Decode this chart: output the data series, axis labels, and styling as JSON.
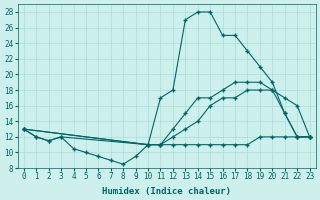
{
  "xlabel": "Humidex (Indice chaleur)",
  "xlim": [
    -0.5,
    23.5
  ],
  "ylim": [
    8,
    29
  ],
  "yticks": [
    8,
    10,
    12,
    14,
    16,
    18,
    20,
    22,
    24,
    26,
    28
  ],
  "xticks": [
    0,
    1,
    2,
    3,
    4,
    5,
    6,
    7,
    8,
    9,
    10,
    11,
    12,
    13,
    14,
    15,
    16,
    17,
    18,
    19,
    20,
    21,
    22,
    23
  ],
  "bg_color": "#cdf0ec",
  "line_color": "#006666",
  "grid_color": "#aaddda",
  "series": [
    {
      "x": [
        0,
        1,
        2,
        3,
        4,
        5,
        6,
        7,
        8,
        9,
        10,
        11,
        12,
        13,
        14,
        15,
        16,
        17,
        18,
        19,
        20,
        21,
        22,
        23
      ],
      "y": [
        13,
        12,
        11.5,
        12,
        10.5,
        10,
        9.5,
        9,
        8.5,
        9.5,
        11,
        11,
        11,
        11,
        11,
        11,
        11,
        11,
        11,
        12,
        12,
        12,
        12,
        12
      ]
    },
    {
      "x": [
        0,
        1,
        2,
        3,
        10,
        11,
        12,
        13,
        14,
        15,
        16,
        17,
        18,
        19,
        20,
        21,
        22,
        23
      ],
      "y": [
        13,
        12,
        11.5,
        12,
        11,
        17,
        18,
        27,
        28,
        28,
        25,
        25,
        23,
        21,
        19,
        15,
        12,
        12
      ]
    },
    {
      "x": [
        0,
        10,
        11,
        12,
        13,
        14,
        15,
        16,
        17,
        18,
        19,
        20,
        21,
        22,
        23
      ],
      "y": [
        13,
        11,
        11,
        13,
        15,
        17,
        17,
        18,
        19,
        19,
        19,
        18,
        15,
        12,
        12
      ]
    },
    {
      "x": [
        0,
        10,
        11,
        12,
        13,
        14,
        15,
        16,
        17,
        18,
        19,
        20,
        21,
        22,
        23
      ],
      "y": [
        13,
        11,
        11,
        12,
        13,
        14,
        16,
        17,
        17,
        18,
        18,
        18,
        17,
        16,
        12
      ]
    }
  ]
}
